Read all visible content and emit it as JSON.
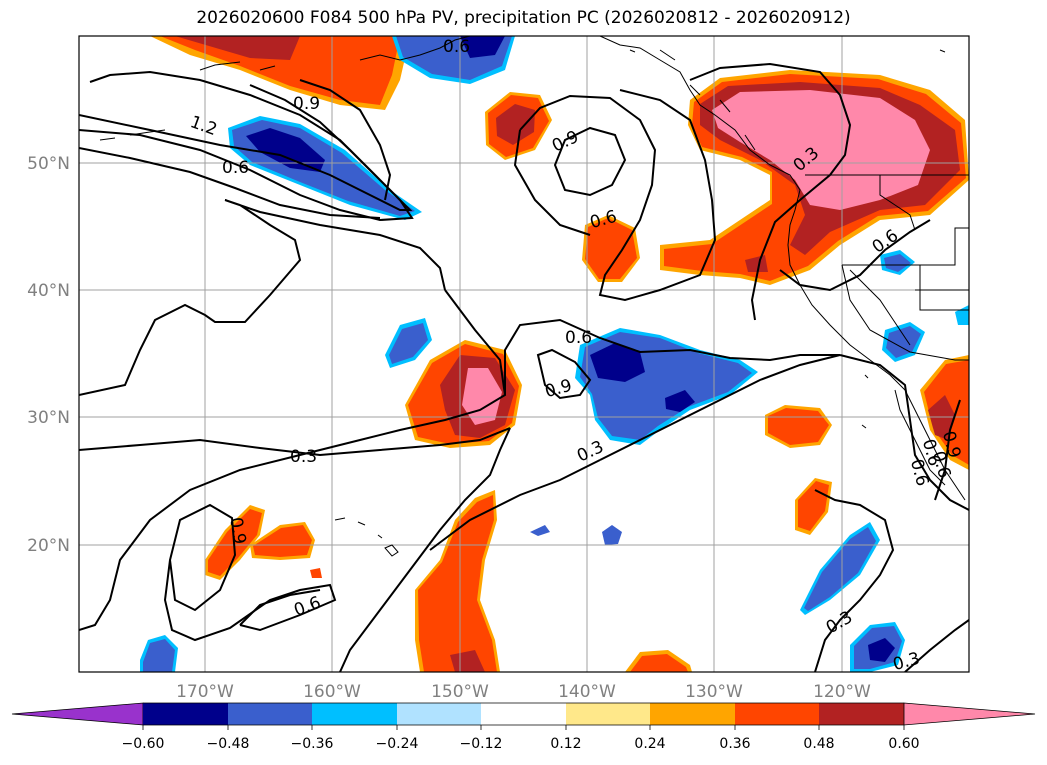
{
  "title": "2026020600 F084 500 hPa PV, precipitation PC (2026020812 - 2026020912)",
  "longitude_labels": [
    "170°W",
    "160°W",
    "150°W",
    "140°W",
    "130°W",
    "120°W"
  ],
  "latitude_labels": [
    "50°N",
    "40°N",
    "30°N",
    "20°N"
  ],
  "contour_labels": [
    "0.9",
    "1.2",
    "0.6",
    "0.6",
    "0.9",
    "0.6",
    "0.6",
    "0.3",
    "0.6",
    "0.9",
    "0.3",
    "0.3",
    "0.9",
    "0.6",
    "0.3",
    "0.3",
    "0.6",
    "0.6",
    "0.6",
    "0.9"
  ],
  "colorbar": {
    "ticks": [
      "−0.60",
      "−0.48",
      "−0.36",
      "−0.24",
      "−0.12",
      "0.12",
      "0.24",
      "0.36",
      "0.48",
      "0.60"
    ],
    "colors": [
      "#9932cc",
      "#00008b",
      "#3a5fcd",
      "#00bfff",
      "#b0e2ff",
      "#ffffff",
      "#ffe88a",
      "#ffa500",
      "#ff4500",
      "#b22222",
      "#ff88aa"
    ]
  },
  "palette": {
    "precip_pos_1": "#ffe88a",
    "precip_pos_2": "#ffa500",
    "precip_pos_3": "#ff4500",
    "precip_pos_4": "#b22222",
    "precip_pos_5": "#ff88aa",
    "precip_neg_1": "#b0e2ff",
    "precip_neg_2": "#00bfff",
    "precip_neg_3": "#3a5fcd",
    "precip_neg_4": "#00008b"
  }
}
